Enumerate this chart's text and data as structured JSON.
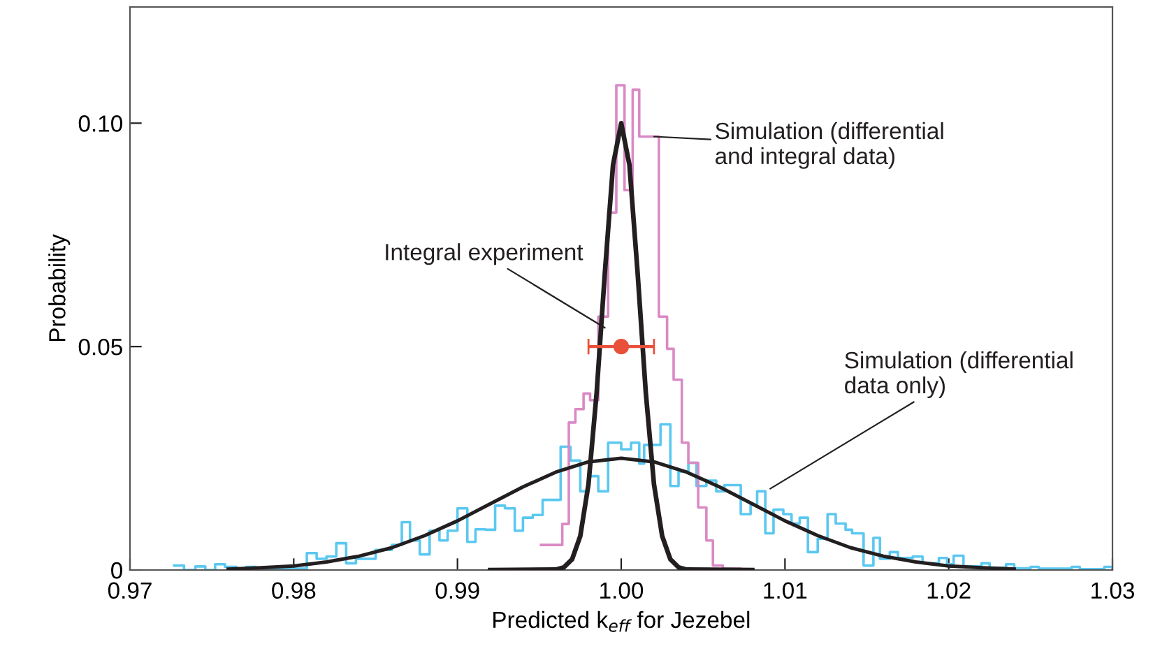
{
  "chart_data": {
    "type": "line",
    "xlabel": "Predicted k$_{eff}$ for Jezebel",
    "ylabel": "Probability",
    "xlim": [
      0.97,
      1.03
    ],
    "xticks": [
      {
        "value": 0.97,
        "label": "0.97"
      },
      {
        "value": 0.98,
        "label": "0.98"
      },
      {
        "value": 0.99,
        "label": "0.99"
      },
      {
        "value": 1.0,
        "label": "1.00"
      },
      {
        "value": 1.01,
        "label": "1.01"
      },
      {
        "value": 1.02,
        "label": "1.02"
      },
      {
        "value": 1.03,
        "label": "1.03"
      }
    ],
    "ylim": [
      0,
      0.126
    ],
    "yticks": [
      0,
      0.05,
      {
        "value": 0.1,
        "label": "0.10"
      }
    ],
    "grid": false,
    "series": [
      {
        "type": "step",
        "color": "#5bc8f0",
        "x": [
          0.9727,
          0.9733,
          0.974,
          0.9746,
          0.9752,
          0.9758,
          0.9765,
          0.9771,
          0.9777,
          0.9808,
          0.9814,
          0.982,
          0.9826,
          0.9832,
          0.9838,
          0.985,
          0.986,
          0.9866,
          0.9871,
          0.9877,
          0.9883,
          0.9889,
          0.9894,
          0.99,
          0.9906,
          0.9911,
          0.9917,
          0.9923,
          0.9929,
          0.9935,
          0.994,
          0.9946,
          0.9952,
          0.9963,
          0.9969,
          0.9975,
          0.998,
          0.9986,
          0.9992,
          1.0,
          1.0006,
          1.0011,
          1.0014,
          1.0024,
          1.003,
          1.0035,
          1.0041,
          1.0046,
          1.0052,
          1.0058,
          1.0063,
          1.0073,
          1.0079,
          1.0083,
          1.0088,
          1.0093,
          1.0099,
          1.0104,
          1.0109,
          1.0114,
          1.012,
          1.0126,
          1.0131,
          1.0137,
          1.0141,
          1.0148,
          1.0154,
          1.0158,
          1.0164,
          1.0169,
          1.0178,
          1.0184,
          1.0194,
          1.0199,
          1.0203,
          1.0209,
          1.022,
          1.0225,
          1.0235,
          1.024,
          1.025,
          1.0255,
          1.0275,
          1.028,
          1.0295,
          1.03
        ],
        "values": [
          0.001,
          0,
          0.0008,
          0,
          0.0013,
          0.0007,
          0,
          0.0007,
          0.0003,
          0.0038,
          0.0025,
          0.003,
          0.006,
          0.0015,
          0.0025,
          0.0045,
          0.0056,
          0.0107,
          0.0066,
          0.0035,
          0.0088,
          0.0066,
          0.0088,
          0.0138,
          0.0063,
          0.0091,
          0.009,
          0.0144,
          0.0138,
          0.0088,
          0.0117,
          0.0123,
          0.0157,
          0.0276,
          0.0245,
          0.0176,
          0.021,
          0.0176,
          0.0285,
          0.027,
          0.0285,
          0.0238,
          0.028,
          0.0326,
          0.0188,
          0.022,
          0.024,
          0.0188,
          0.02,
          0.0176,
          0.019,
          0.0125,
          0.0146,
          0.0176,
          0.0082,
          0.0135,
          0.0125,
          0.0104,
          0.0117,
          0.004,
          0.007,
          0.0125,
          0.0104,
          0.009,
          0.0082,
          0.001,
          0.0072,
          0.0025,
          0.004,
          0.0027,
          0.003,
          0.0015,
          0.0027,
          0.0013,
          0.0032,
          0.0008,
          0.0015,
          0.0005,
          0.0013,
          0.0004,
          0.0007,
          0.0003,
          0.0007,
          0.0002,
          0.0007,
          0
        ]
      },
      {
        "type": "step",
        "color": "#d98ac4",
        "x": [
          0.9951,
          0.9964,
          0.9968,
          0.9972,
          0.9977,
          0.9981,
          0.9986,
          0.9992,
          0.9997,
          1.0002,
          1.0007,
          1.0011,
          1.0023,
          1.0028,
          1.0032,
          1.0037,
          1.0041,
          1.0047,
          1.0052,
          1.0056,
          1.0062,
          1.0073
        ],
        "values": [
          0.0056,
          0.0103,
          0.033,
          0.036,
          0.0395,
          0.038,
          0.0567,
          0.08,
          0.1085,
          0.085,
          0.1075,
          0.097,
          0.0567,
          0.0495,
          0.0426,
          0.0285,
          0.024,
          0.014,
          0.0066,
          0.001,
          0.0003,
          0
        ]
      },
      {
        "color": "#231f20",
        "x": [
          0.976,
          0.978,
          0.98,
          0.982,
          0.984,
          0.986,
          0.988,
          0.99,
          0.992,
          0.994,
          0.996,
          0.998,
          1.0,
          1.002,
          1.004,
          1.006,
          1.008,
          1.01,
          1.012,
          1.014,
          1.016,
          1.018,
          1.02,
          1.022,
          1.024
        ],
        "values": [
          0.0002,
          0.0005,
          0.0009,
          0.0018,
          0.0031,
          0.005,
          0.0077,
          0.011,
          0.0148,
          0.0186,
          0.0219,
          0.0242,
          0.025,
          0.0242,
          0.0219,
          0.0186,
          0.0148,
          0.011,
          0.0077,
          0.005,
          0.0031,
          0.0018,
          0.0009,
          0.0005,
          0.0002
        ]
      },
      {
        "color": "#231f20",
        "x": [
          0.992,
          0.996,
          0.9965,
          0.997,
          0.9975,
          0.998,
          0.9985,
          0.999,
          0.9995,
          1.0,
          1.0005,
          1.001,
          1.0015,
          1.002,
          1.0025,
          1.003,
          1.0035,
          1.004,
          1.008
        ],
        "values": [
          0,
          0.0001,
          0.0006,
          0.0024,
          0.0076,
          0.0192,
          0.0397,
          0.0665,
          0.0907,
          0.1,
          0.0907,
          0.0665,
          0.0397,
          0.0192,
          0.0076,
          0.0024,
          0.0006,
          0.0001,
          0
        ]
      },
      {
        "type": "scatter",
        "color": "#e8503a",
        "x": [
          1.0
        ],
        "values": [
          0.05
        ],
        "xerrors": [
          0.002
        ]
      }
    ],
    "annotations": [
      {
        "text": "Integral experiment",
        "x": 0.999,
        "y": 0.0542
      },
      {
        "text": "Simulation (differential\nand integral data)",
        "x": 1.002,
        "y": 0.097
      },
      {
        "text": "Simulation (differential\ndata only)",
        "x": 1.0091,
        "y": 0.0182
      }
    ]
  }
}
